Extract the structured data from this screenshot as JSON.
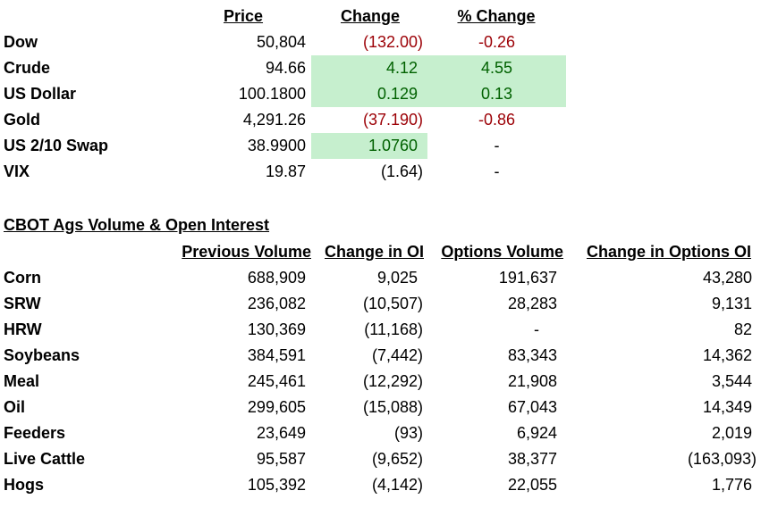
{
  "colors": {
    "negative_text": "#9c0006",
    "positive_text": "#006100",
    "positive_fill": "#c6efce"
  },
  "market": {
    "headers": {
      "price": "Price",
      "change": "Change ",
      "pct_change": "% Change"
    },
    "rows": [
      {
        "name": "Dow",
        "price": "50,804",
        "change": "(132.00)",
        "pct_change": "-0.26"
      },
      {
        "name": "Crude",
        "price": "94.66",
        "change": "4.12",
        "pct_change": "4.55"
      },
      {
        "name": "US Dollar",
        "price": "100.1800",
        "change": "0.129",
        "pct_change": "0.13"
      },
      {
        "name": "Gold",
        "price": "4,291.26",
        "change": "(37.190)",
        "pct_change": "-0.86"
      },
      {
        "name": "US 2/10 Swap",
        "price": "38.9900",
        "change": "1.0760",
        "pct_change": "-"
      },
      {
        "name": "VIX",
        "price": "19.87",
        "change": "(1.64)",
        "pct_change": "-"
      }
    ]
  },
  "cbot": {
    "title": "CBOT Ags Volume & Open Interest",
    "headers": {
      "previous_volume": "Previous Volume",
      "change_in_oi": "Change in OI",
      "options_volume": "Options Volume",
      "change_in_options_oi": "Change in Options OI"
    },
    "rows": [
      {
        "name": "Corn",
        "previous_volume": "688,909",
        "change_in_oi": "9,025",
        "options_volume": "191,637",
        "change_in_options_oi": "43,280"
      },
      {
        "name": "SRW",
        "previous_volume": "236,082",
        "change_in_oi": "(10,507)",
        "options_volume": "28,283",
        "change_in_options_oi": "9,131"
      },
      {
        "name": "HRW",
        "previous_volume": "130,369",
        "change_in_oi": "(11,168)",
        "options_volume": "-",
        "change_in_options_oi": "82"
      },
      {
        "name": "Soybeans",
        "previous_volume": "384,591",
        "change_in_oi": "(7,442)",
        "options_volume": "83,343",
        "change_in_options_oi": "14,362"
      },
      {
        "name": "Meal",
        "previous_volume": "245,461",
        "change_in_oi": "(12,292)",
        "options_volume": "21,908",
        "change_in_options_oi": "3,544"
      },
      {
        "name": "Oil",
        "previous_volume": "299,605",
        "change_in_oi": "(15,088)",
        "options_volume": "67,043",
        "change_in_options_oi": "14,349"
      },
      {
        "name": "Feeders",
        "previous_volume": "23,649",
        "change_in_oi": "(93)",
        "options_volume": "6,924",
        "change_in_options_oi": "2,019"
      },
      {
        "name": "Live Cattle",
        "previous_volume": "95,587",
        "change_in_oi": "(9,652)",
        "options_volume": "38,377",
        "change_in_options_oi": "(163,093)"
      },
      {
        "name": "Hogs",
        "previous_volume": "105,392",
        "change_in_oi": "(4,142)",
        "options_volume": "22,055",
        "change_in_options_oi": "1,776"
      }
    ]
  }
}
